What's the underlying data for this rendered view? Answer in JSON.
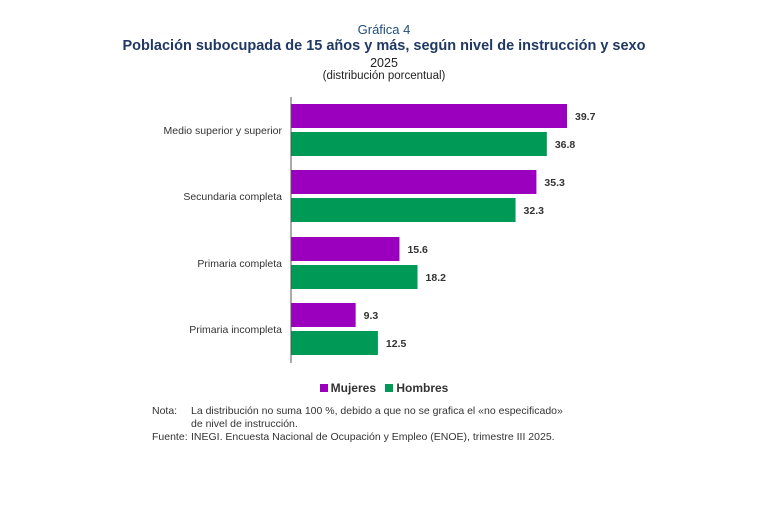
{
  "header": {
    "chart_number": "Gráfica 4",
    "title": "Población subocupada de 15 años y más, según nivel de instrucción y sexo",
    "year": "2025",
    "units": "(distribución porcentual)"
  },
  "colors": {
    "mujeres": "#9b00be",
    "hombres": "#009a57",
    "axis": "#555555"
  },
  "chart_data": {
    "type": "bar",
    "orientation": "horizontal",
    "categories": [
      "Medio superior y superior",
      "Secundaria completa",
      "Primaria completa",
      "Primaria incompleta"
    ],
    "series": [
      {
        "name": "Mujeres",
        "values": [
          39.7,
          35.3,
          15.6,
          9.3
        ]
      },
      {
        "name": "Hombres",
        "values": [
          36.8,
          32.3,
          18.2,
          12.5
        ]
      }
    ],
    "data_labels": [
      [
        "39.7",
        "36.8"
      ],
      [
        "35.3",
        "32.3"
      ],
      [
        "15.6",
        "18.2"
      ],
      [
        "9.3",
        "12.5"
      ]
    ],
    "xlim": [
      0,
      40
    ],
    "grid": false,
    "legend_position": "bottom"
  },
  "legend": {
    "mujeres": "Mujeres",
    "hombres": "Hombres"
  },
  "notes": {
    "note_label": "Nota:",
    "note_line1": "La distribución no suma 100 %, debido a que no se grafica el «no especificado»",
    "note_line2": "de nivel de instrucción.",
    "source_label": "Fuente:",
    "source_text": "INEGI. Encuesta Nacional de Ocupación y Empleo (ENOE), trimestre III 2025."
  }
}
